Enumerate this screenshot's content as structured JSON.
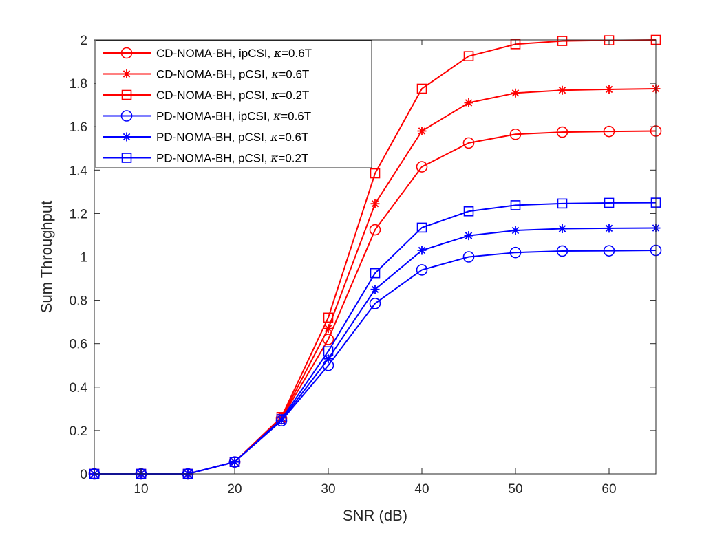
{
  "chart_data": {
    "type": "line",
    "title": "",
    "xlabel": "SNR (dB)",
    "ylabel": "Sum Throughput",
    "xlim": [
      5,
      65
    ],
    "ylim": [
      0,
      2
    ],
    "xticks": [
      10,
      20,
      30,
      40,
      50,
      60
    ],
    "xtick_labels": [
      "10",
      "20",
      "30",
      "40",
      "50",
      "60"
    ],
    "yticks": [
      0,
      0.2,
      0.4,
      0.6,
      0.8,
      1,
      1.2,
      1.4,
      1.6,
      1.8,
      2
    ],
    "ytick_labels": [
      "0",
      "0.2",
      "0.4",
      "0.6",
      "0.8",
      "1",
      "1.2",
      "1.4",
      "1.6",
      "1.8",
      "2"
    ],
    "grid": false,
    "legend_position": "top-left",
    "x": [
      5,
      10,
      15,
      20,
      25,
      30,
      35,
      40,
      45,
      50,
      55,
      60,
      65
    ],
    "series": [
      {
        "name": "CD-NOMA-BH, ipCSI, κ=0.6T",
        "label_prefix": "CD-NOMA-BH, ipCSI, ",
        "kappa_symbol": "κ",
        "label_suffix": "=0.6T",
        "color": "#ff0000",
        "marker": "circle",
        "values": [
          0,
          0,
          0,
          0.055,
          0.255,
          0.62,
          1.125,
          1.415,
          1.525,
          1.565,
          1.575,
          1.578,
          1.58
        ]
      },
      {
        "name": "CD-NOMA-BH, pCSI, κ=0.6T",
        "label_prefix": "CD-NOMA-BH, pCSI, ",
        "kappa_symbol": "κ",
        "label_suffix": "=0.6T",
        "color": "#ff0000",
        "marker": "asterisk",
        "values": [
          0,
          0,
          0,
          0.055,
          0.258,
          0.67,
          1.245,
          1.58,
          1.71,
          1.755,
          1.768,
          1.772,
          1.775
        ]
      },
      {
        "name": "CD-NOMA-BH,  pCSI, κ=0.2T",
        "label_prefix": "CD-NOMA-BH,  pCSI, ",
        "kappa_symbol": "κ",
        "label_suffix": "=0.2T",
        "color": "#ff0000",
        "marker": "square",
        "values": [
          0,
          0,
          0,
          0.055,
          0.262,
          0.72,
          1.385,
          1.775,
          1.925,
          1.98,
          1.995,
          1.998,
          2.0
        ]
      },
      {
        "name": "PD-NOMA-BH, ipCSI, κ=0.6T",
        "label_prefix": "PD-NOMA-BH, ipCSI, ",
        "kappa_symbol": "κ",
        "label_suffix": "=0.6T",
        "color": "#0000ff",
        "marker": "circle",
        "values": [
          0,
          0,
          0,
          0.055,
          0.245,
          0.5,
          0.785,
          0.94,
          1.0,
          1.02,
          1.027,
          1.028,
          1.03
        ]
      },
      {
        "name": "PD-NOMA-BH, pCSI, κ=0.6T",
        "label_prefix": "PD-NOMA-BH, pCSI, ",
        "kappa_symbol": "κ",
        "label_suffix": "=0.6T",
        "color": "#0000ff",
        "marker": "asterisk",
        "values": [
          0,
          0,
          0,
          0.055,
          0.248,
          0.53,
          0.85,
          1.03,
          1.098,
          1.122,
          1.13,
          1.132,
          1.133
        ]
      },
      {
        "name": "PD-NOMA-BH, pCSI, κ=0.2T",
        "label_prefix": "PD-NOMA-BH, pCSI, ",
        "kappa_symbol": "κ",
        "label_suffix": "=0.2T",
        "color": "#0000ff",
        "marker": "square",
        "values": [
          0,
          0,
          0,
          0.055,
          0.252,
          0.565,
          0.925,
          1.135,
          1.21,
          1.238,
          1.246,
          1.249,
          1.25
        ]
      }
    ]
  }
}
